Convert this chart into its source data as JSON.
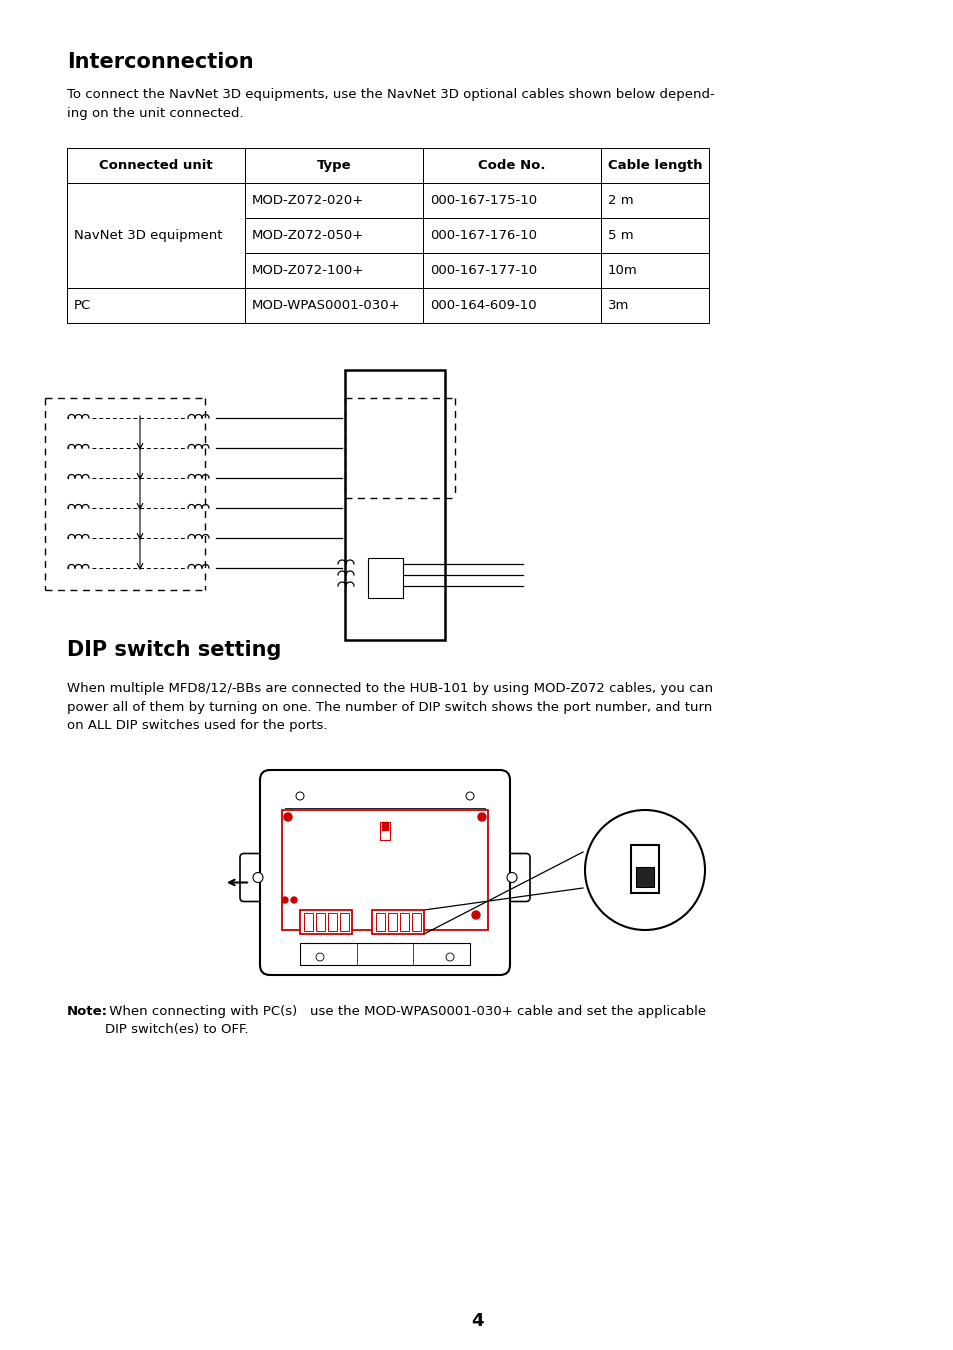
{
  "title": "Interconnection",
  "section2_title": "DIP switch setting",
  "intro_text": "To connect the NavNet 3D equipments, use the NavNet 3D optional cables shown below depend-\ning on the unit connected.",
  "table_headers": [
    "Connected unit",
    "Type",
    "Code No.",
    "Cable length"
  ],
  "table_rows": [
    [
      "NavNet 3D equipment",
      "MOD-Z072-020+",
      "000-167-175-10",
      "2 m"
    ],
    [
      "",
      "MOD-Z072-050+",
      "000-167-176-10",
      "5 m"
    ],
    [
      "",
      "MOD-Z072-100+",
      "000-167-177-10",
      "10m"
    ],
    [
      "PC",
      "MOD-WPAS0001-030+",
      "000-164-609-10",
      "3m"
    ]
  ],
  "dip_text": "When multiple MFD8/12/-BBs are connected to the HUB-101 by using MOD-Z072 cables, you can\npower all of them by turning on one. The number of DIP switch shows the port number, and turn\non ALL DIP switches used for the ports.",
  "note_bold": "Note:",
  "note_text": " When connecting with PC(s)   use the MOD-WPAS0001-030+ cable and set the applicable\nDIP switch(es) to OFF.",
  "page_number": "4",
  "bg_color": "#ffffff",
  "text_color": "#000000",
  "red_color": "#cc0000"
}
